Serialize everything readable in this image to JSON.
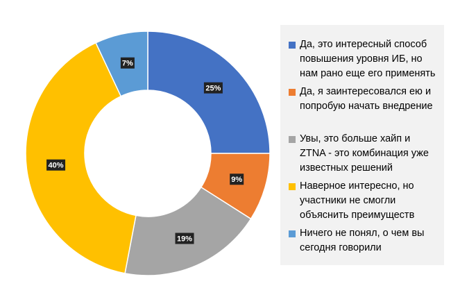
{
  "chart_data": {
    "type": "pie",
    "donut": true,
    "categories": [
      "Да, это интересный способ повышения уровня ИБ, но нам рано еще его применять",
      "Да, я заинтересовался ею и попробую начать внедрение",
      "Увы, это больше хайп и ZTNA - это комбинация уже известных решений",
      "Наверное интересно, но участники не смогли объяснить преимуществ",
      "Ничего не понял, о чем вы сегодня говорили"
    ],
    "values": [
      25,
      9,
      19,
      40,
      7
    ],
    "value_labels": [
      "25%",
      "9%",
      "19%",
      "40%",
      "7%"
    ],
    "colors": [
      "#4472c4",
      "#ed7d31",
      "#a5a5a5",
      "#ffc000",
      "#5b9bd5"
    ],
    "legend_position": "right"
  }
}
